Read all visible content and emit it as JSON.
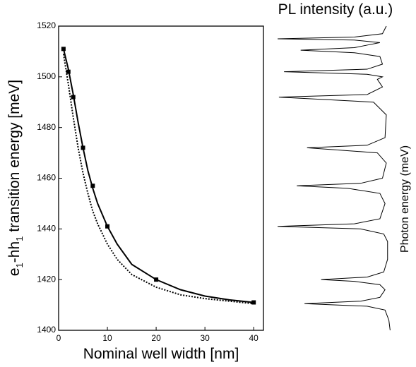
{
  "chart_data": [
    {
      "type": "line",
      "xlabel": "Nominal well width [nm]",
      "ylabel": [
        "e",
        "1",
        "-hh",
        "1",
        " transition energy [meV]"
      ],
      "xlim": [
        0,
        42
      ],
      "ylim": [
        1400,
        1520
      ],
      "xticks": [
        0,
        10,
        20,
        30,
        40
      ],
      "yticks": [
        1400,
        1420,
        1440,
        1460,
        1480,
        1500,
        1520
      ],
      "series": [
        {
          "style": "markers",
          "color": "#000000",
          "x": [
            1,
            2,
            3,
            5,
            7,
            10,
            20,
            40
          ],
          "values": [
            1511,
            1502,
            1492,
            1472,
            1457,
            1441,
            1420,
            1411
          ]
        },
        {
          "style": "solid",
          "color": "#000000",
          "x": [
            1,
            2,
            3,
            4,
            5,
            6,
            7,
            8,
            10,
            12,
            15,
            20,
            25,
            30,
            35,
            40
          ],
          "values": [
            1511,
            1503,
            1493,
            1482,
            1472,
            1463,
            1456,
            1450,
            1441,
            1434,
            1426,
            1420,
            1416,
            1413.5,
            1412,
            1411
          ]
        },
        {
          "style": "dotted",
          "color": "#000000",
          "x": [
            1,
            2,
            3,
            4,
            5,
            6,
            7,
            8,
            10,
            12,
            15,
            20,
            25,
            30,
            35,
            40
          ],
          "values": [
            1509,
            1497,
            1484,
            1472,
            1462,
            1454,
            1447,
            1442,
            1434,
            1428,
            1422,
            1417,
            1414,
            1412.5,
            1411.5,
            1410.5
          ]
        }
      ]
    },
    {
      "type": "spectrum",
      "title": "PL intensity (a.u.)",
      "ylabel": "Photon energy (meV)",
      "xlim": [
        1,
        0
      ],
      "ylim": [
        1400,
        1520
      ],
      "color": "#000000",
      "energy": [
        1400,
        1404,
        1408,
        1409.5,
        1410.5,
        1411.5,
        1413,
        1416,
        1418,
        1419.3,
        1420,
        1421,
        1423,
        1428,
        1435,
        1438,
        1440,
        1441,
        1442,
        1444,
        1450,
        1454,
        1456,
        1457,
        1458,
        1460,
        1466,
        1470,
        1472,
        1473,
        1476,
        1485,
        1490,
        1492,
        1493,
        1496,
        1499,
        1500,
        1501,
        1502,
        1503,
        1505,
        1508,
        1509.5,
        1510.5,
        1511.5,
        1512.5,
        1513.5,
        1514.5,
        1515,
        1515.7,
        1517,
        1519,
        1520
      ],
      "intensity": [
        0.02,
        0.03,
        0.06,
        0.2,
        0.69,
        0.25,
        0.1,
        0.06,
        0.1,
        0.3,
        0.56,
        0.2,
        0.07,
        0.04,
        0.04,
        0.07,
        0.25,
        0.9,
        0.3,
        0.1,
        0.06,
        0.1,
        0.35,
        0.75,
        0.25,
        0.08,
        0.05,
        0.12,
        0.67,
        0.2,
        0.06,
        0.05,
        0.15,
        0.89,
        0.2,
        0.08,
        0.12,
        0.08,
        0.2,
        0.85,
        0.2,
        0.08,
        0.1,
        0.3,
        0.72,
        0.3,
        0.2,
        0.1,
        0.3,
        0.9,
        0.3,
        0.08,
        0.06,
        0.05
      ]
    }
  ]
}
